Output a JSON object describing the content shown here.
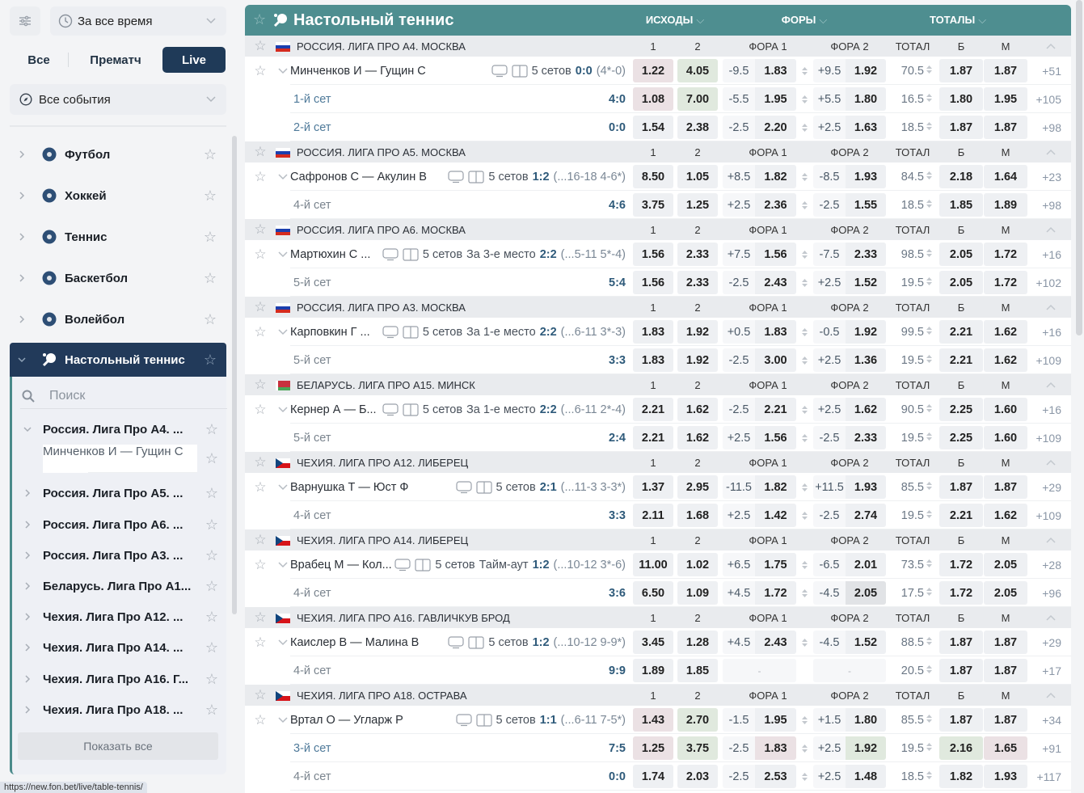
{
  "sidebar": {
    "period": "За все время",
    "tabs": [
      "Все",
      "Прематч",
      "Live"
    ],
    "active_tab": "Live",
    "events_filter": "Все события",
    "sports": [
      {
        "label": "Футбол",
        "icon": "soccer-ball-icon"
      },
      {
        "label": "Хоккей",
        "icon": "hockey-puck-icon"
      },
      {
        "label": "Теннис",
        "icon": "tennis-ball-icon"
      },
      {
        "label": "Баскетбол",
        "icon": "basketball-icon"
      },
      {
        "label": "Волейбол",
        "icon": "volleyball-icon"
      }
    ],
    "active_sport": "Настольный теннис",
    "search_placeholder": "Поиск",
    "leagues": [
      {
        "label": "Россия. Лига Про А4. ...",
        "expanded": true
      },
      {
        "label": "Минченков И — Гущин С",
        "match": true
      },
      {
        "label": "Россия. Лига Про А5. ..."
      },
      {
        "label": "Россия. Лига Про А6. ..."
      },
      {
        "label": "Россия. Лига Про А3. ..."
      },
      {
        "label": "Беларусь. Лига Про А1..."
      },
      {
        "label": "Чехия. Лига Про А12. ..."
      },
      {
        "label": "Чехия. Лига Про А14. ..."
      },
      {
        "label": "Чехия. Лига Про А16. Г..."
      },
      {
        "label": "Чехия. Лига Про А18. ..."
      }
    ],
    "show_all": "Показать все"
  },
  "status_url": "https://new.fon.bet/live/table-tennis/",
  "colors": {
    "accent": "#4e8e90",
    "dark": "#1f3a58",
    "odd_down": "#ebe1e4",
    "odd_up": "#e0e9de"
  },
  "main": {
    "title": "Настольный теннис",
    "groups": [
      "ИСХОДЫ",
      "ФОРЫ",
      "ТОТАЛЫ"
    ],
    "columns": [
      "1",
      "2",
      "ФОРА 1",
      "ФОРА 2",
      "ТОТАЛ",
      "Б",
      "М"
    ],
    "leagues": [
      {
        "flag": "ru",
        "name": "РОССИЯ. ЛИГА ПРО А4. МОСКВА",
        "match": {
          "name": "Минченков И — Гущин С",
          "sets": "5 сетов",
          "extra": "",
          "score": "0:0",
          "detail": "(4*-0)",
          "odds": {
            "o1": "1.22",
            "o2": "4.05",
            "h1": "-9.5",
            "h1o": "1.83",
            "h2": "+9.5",
            "h2o": "1.92",
            "total": "70.5",
            "over": "1.87",
            "under": "1.87",
            "more": "+51",
            "hl": {
              "o1": "down",
              "o2": "up"
            }
          }
        },
        "subs": [
          {
            "label": "1-й сет",
            "active": true,
            "score": "4:0",
            "odds": {
              "o1": "1.08",
              "o2": "7.00",
              "h1": "-5.5",
              "h1o": "1.95",
              "h2": "+5.5",
              "h2o": "1.80",
              "total": "16.5",
              "over": "1.80",
              "under": "1.95",
              "more": "+105",
              "hl": {
                "o1": "down",
                "o2": "up"
              }
            }
          },
          {
            "label": "2-й сет",
            "active": true,
            "score": "0:0",
            "odds": {
              "o1": "1.54",
              "o2": "2.38",
              "h1": "-2.5",
              "h1o": "2.20",
              "h2": "+2.5",
              "h2o": "1.63",
              "total": "18.5",
              "over": "1.87",
              "under": "1.87",
              "more": "+98"
            }
          }
        ]
      },
      {
        "flag": "ru",
        "name": "РОССИЯ. ЛИГА ПРО А5. МОСКВА",
        "match": {
          "name": "Сафронов С — Акулин В",
          "sets": "5 сетов",
          "extra": "",
          "score": "1:2",
          "detail": "(...16-18 4-6*)",
          "odds": {
            "o1": "8.50",
            "o2": "1.05",
            "h1": "+8.5",
            "h1o": "1.82",
            "h2": "-8.5",
            "h2o": "1.93",
            "total": "84.5",
            "over": "2.18",
            "under": "1.64",
            "more": "+23"
          }
        },
        "subs": [
          {
            "label": "4-й сет",
            "score": "4:6",
            "odds": {
              "o1": "3.75",
              "o2": "1.25",
              "h1": "+2.5",
              "h1o": "2.36",
              "h2": "-2.5",
              "h2o": "1.55",
              "total": "18.5",
              "over": "1.85",
              "under": "1.89",
              "more": "+98"
            }
          }
        ]
      },
      {
        "flag": "ru",
        "name": "РОССИЯ. ЛИГА ПРО А6. МОСКВА",
        "match": {
          "name": "Мартюхин С ...",
          "sets": "5 сетов",
          "extra": "За 3-е место",
          "score": "2:2",
          "detail": "(...5-11 5*-4)",
          "odds": {
            "o1": "1.56",
            "o2": "2.33",
            "h1": "+7.5",
            "h1o": "1.56",
            "h2": "-7.5",
            "h2o": "2.33",
            "total": "98.5",
            "over": "2.05",
            "under": "1.72",
            "more": "+16"
          }
        },
        "subs": [
          {
            "label": "5-й сет",
            "score": "5:4",
            "odds": {
              "o1": "1.56",
              "o2": "2.33",
              "h1": "-2.5",
              "h1o": "2.43",
              "h2": "+2.5",
              "h2o": "1.52",
              "total": "19.5",
              "over": "2.05",
              "under": "1.72",
              "more": "+102"
            }
          }
        ]
      },
      {
        "flag": "ru",
        "name": "РОССИЯ. ЛИГА ПРО А3. МОСКВА",
        "match": {
          "name": "Карповкин Г ...",
          "sets": "5 сетов",
          "extra": "За 1-е место",
          "score": "2:2",
          "detail": "(...6-11 3*-3)",
          "odds": {
            "o1": "1.83",
            "o2": "1.92",
            "h1": "+0.5",
            "h1o": "1.83",
            "h2": "-0.5",
            "h2o": "1.92",
            "total": "99.5",
            "over": "2.21",
            "under": "1.62",
            "more": "+16"
          }
        },
        "subs": [
          {
            "label": "5-й сет",
            "score": "3:3",
            "odds": {
              "o1": "1.83",
              "o2": "1.92",
              "h1": "-2.5",
              "h1o": "3.00",
              "h2": "+2.5",
              "h2o": "1.36",
              "total": "19.5",
              "over": "2.21",
              "under": "1.62",
              "more": "+109"
            }
          }
        ]
      },
      {
        "flag": "by",
        "name": "БЕЛАРУСЬ. ЛИГА ПРО А15. МИНСК",
        "match": {
          "name": "Кернер А — Б...",
          "sets": "5 сетов",
          "extra": "За 1-е место",
          "score": "2:2",
          "detail": "(...6-11 2*-4)",
          "odds": {
            "o1": "2.21",
            "o2": "1.62",
            "h1": "-2.5",
            "h1o": "2.21",
            "h2": "+2.5",
            "h2o": "1.62",
            "total": "90.5",
            "over": "2.25",
            "under": "1.60",
            "more": "+16"
          }
        },
        "subs": [
          {
            "label": "5-й сет",
            "score": "2:4",
            "odds": {
              "o1": "2.21",
              "o2": "1.62",
              "h1": "+2.5",
              "h1o": "1.56",
              "h2": "-2.5",
              "h2o": "2.33",
              "total": "19.5",
              "over": "2.25",
              "under": "1.60",
              "more": "+109"
            }
          }
        ]
      },
      {
        "flag": "cz",
        "name": "ЧЕХИЯ. ЛИГА ПРО А12. ЛИБЕРЕЦ",
        "match": {
          "name": "Варнушка Т — Юст Ф",
          "sets": "5 сетов",
          "extra": "",
          "score": "2:1",
          "detail": "(...11-3 3-3*)",
          "odds": {
            "o1": "1.37",
            "o2": "2.95",
            "h1": "-11.5",
            "h1o": "1.82",
            "h2": "+11.5",
            "h2o": "1.93",
            "total": "85.5",
            "over": "1.87",
            "under": "1.87",
            "more": "+29"
          }
        },
        "subs": [
          {
            "label": "4-й сет",
            "score": "3:3",
            "odds": {
              "o1": "2.11",
              "o2": "1.68",
              "h1": "+2.5",
              "h1o": "1.42",
              "h2": "-2.5",
              "h2o": "2.74",
              "total": "19.5",
              "over": "2.21",
              "under": "1.62",
              "more": "+109"
            }
          }
        ]
      },
      {
        "flag": "cz",
        "name": "ЧЕХИЯ. ЛИГА ПРО А14. ЛИБЕРЕЦ",
        "match": {
          "name": "Врабец М — Кол...",
          "sets": "5 сетов",
          "extra": "Тайм-аут",
          "score": "1:2",
          "detail": "(...10-12 3*-6)",
          "odds": {
            "o1": "11.00",
            "o2": "1.02",
            "h1": "+6.5",
            "h1o": "1.75",
            "h2": "-6.5",
            "h2o": "2.01",
            "total": "73.5",
            "over": "1.72",
            "under": "2.05",
            "more": "+28"
          }
        },
        "subs": [
          {
            "label": "4-й сет",
            "score": "3:6",
            "odds": {
              "o1": "6.50",
              "o2": "1.09",
              "h1": "+4.5",
              "h1o": "1.72",
              "h2": "-4.5",
              "h2o": "2.05",
              "total": "17.5",
              "over": "1.72",
              "under": "2.05",
              "more": "+96",
              "hl": {
                "h2o": "hov"
              }
            }
          }
        ]
      },
      {
        "flag": "cz",
        "name": "ЧЕХИЯ. ЛИГА ПРО А16. ГАВЛИЧКУВ БРОД",
        "match": {
          "name": "Каислер В — Малина В",
          "sets": "5 сетов",
          "extra": "",
          "score": "1:2",
          "detail": "(...10-12 9-9*)",
          "odds": {
            "o1": "3.45",
            "o2": "1.28",
            "h1": "+4.5",
            "h1o": "2.43",
            "h2": "-4.5",
            "h2o": "1.52",
            "total": "88.5",
            "over": "1.87",
            "under": "1.87",
            "more": "+29"
          }
        },
        "subs": [
          {
            "label": "4-й сет",
            "score": "9:9",
            "odds": {
              "o1": "1.89",
              "o2": "1.85",
              "h1": "",
              "h1o": "-",
              "h2": "",
              "h2o": "-",
              "total": "20.5",
              "over": "1.87",
              "under": "1.87",
              "more": "+17",
              "empty_fora": true
            }
          }
        ]
      },
      {
        "flag": "cz",
        "name": "ЧЕХИЯ. ЛИГА ПРО А18. ОСТРАВА",
        "match": {
          "name": "Вртал О — Угларж Р",
          "sets": "5 сетов",
          "extra": "",
          "score": "1:1",
          "detail": "(...6-11 7-5*)",
          "odds": {
            "o1": "1.43",
            "o2": "2.70",
            "h1": "-1.5",
            "h1o": "1.95",
            "h2": "+1.5",
            "h2o": "1.80",
            "total": "85.5",
            "over": "1.87",
            "under": "1.87",
            "more": "+34",
            "hl": {
              "o1": "down",
              "o2": "up"
            }
          }
        },
        "subs": [
          {
            "label": "3-й сет",
            "active": true,
            "score": "7:5",
            "odds": {
              "o1": "1.25",
              "o2": "3.75",
              "h1": "-2.5",
              "h1o": "1.83",
              "h2": "+2.5",
              "h2o": "1.92",
              "total": "19.5",
              "over": "2.16",
              "under": "1.65",
              "more": "+91",
              "hl": {
                "o1": "down",
                "o2": "up",
                "h1o": "down",
                "h2o": "up",
                "over": "up",
                "under": "down"
              }
            }
          },
          {
            "label": "4-й сет",
            "score": "0:0",
            "odds": {
              "o1": "1.74",
              "o2": "2.03",
              "h1": "-2.5",
              "h1o": "2.53",
              "h2": "+2.5",
              "h2o": "1.48",
              "total": "18.5",
              "over": "1.82",
              "under": "1.93",
              "more": "+117"
            }
          }
        ]
      }
    ]
  }
}
